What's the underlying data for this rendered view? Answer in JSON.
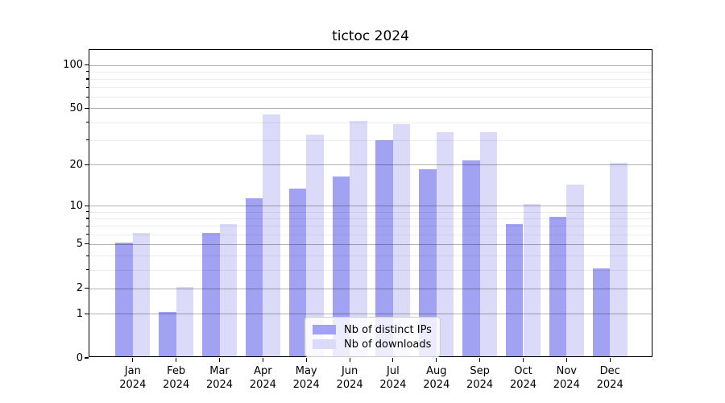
{
  "chart_data": {
    "type": "bar",
    "title": "tictoc 2024",
    "categories": [
      {
        "month": "Jan",
        "year": "2024"
      },
      {
        "month": "Feb",
        "year": "2024"
      },
      {
        "month": "Mar",
        "year": "2024"
      },
      {
        "month": "Apr",
        "year": "2024"
      },
      {
        "month": "May",
        "year": "2024"
      },
      {
        "month": "Jun",
        "year": "2024"
      },
      {
        "month": "Jul",
        "year": "2024"
      },
      {
        "month": "Aug",
        "year": "2024"
      },
      {
        "month": "Sep",
        "year": "2024"
      },
      {
        "month": "Oct",
        "year": "2024"
      },
      {
        "month": "Nov",
        "year": "2024"
      },
      {
        "month": "Dec",
        "year": "2024"
      }
    ],
    "series": [
      {
        "name": "Nb of distinct IPs",
        "color": "#a2a2f2",
        "values": [
          5,
          1,
          6,
          11,
          13,
          16,
          29,
          18,
          21,
          7,
          8,
          3
        ]
      },
      {
        "name": "Nb of downloads",
        "color": "#dbdbf9",
        "values": [
          6,
          2,
          7,
          44,
          32,
          40,
          38,
          33,
          33,
          10,
          14,
          20
        ]
      }
    ],
    "xlabel": "",
    "ylabel": "",
    "yscale": "log1p",
    "yticks": [
      0,
      1,
      2,
      5,
      10,
      20,
      50,
      100
    ],
    "minor_yticks": [
      3,
      4,
      6,
      7,
      8,
      9,
      30,
      40,
      60,
      70,
      80,
      90
    ],
    "ylim": [
      0,
      127
    ],
    "grid": true,
    "legend_position": "lower center",
    "grid_major_color": "#b3b3b3",
    "grid_minor_color": "#ededed"
  }
}
